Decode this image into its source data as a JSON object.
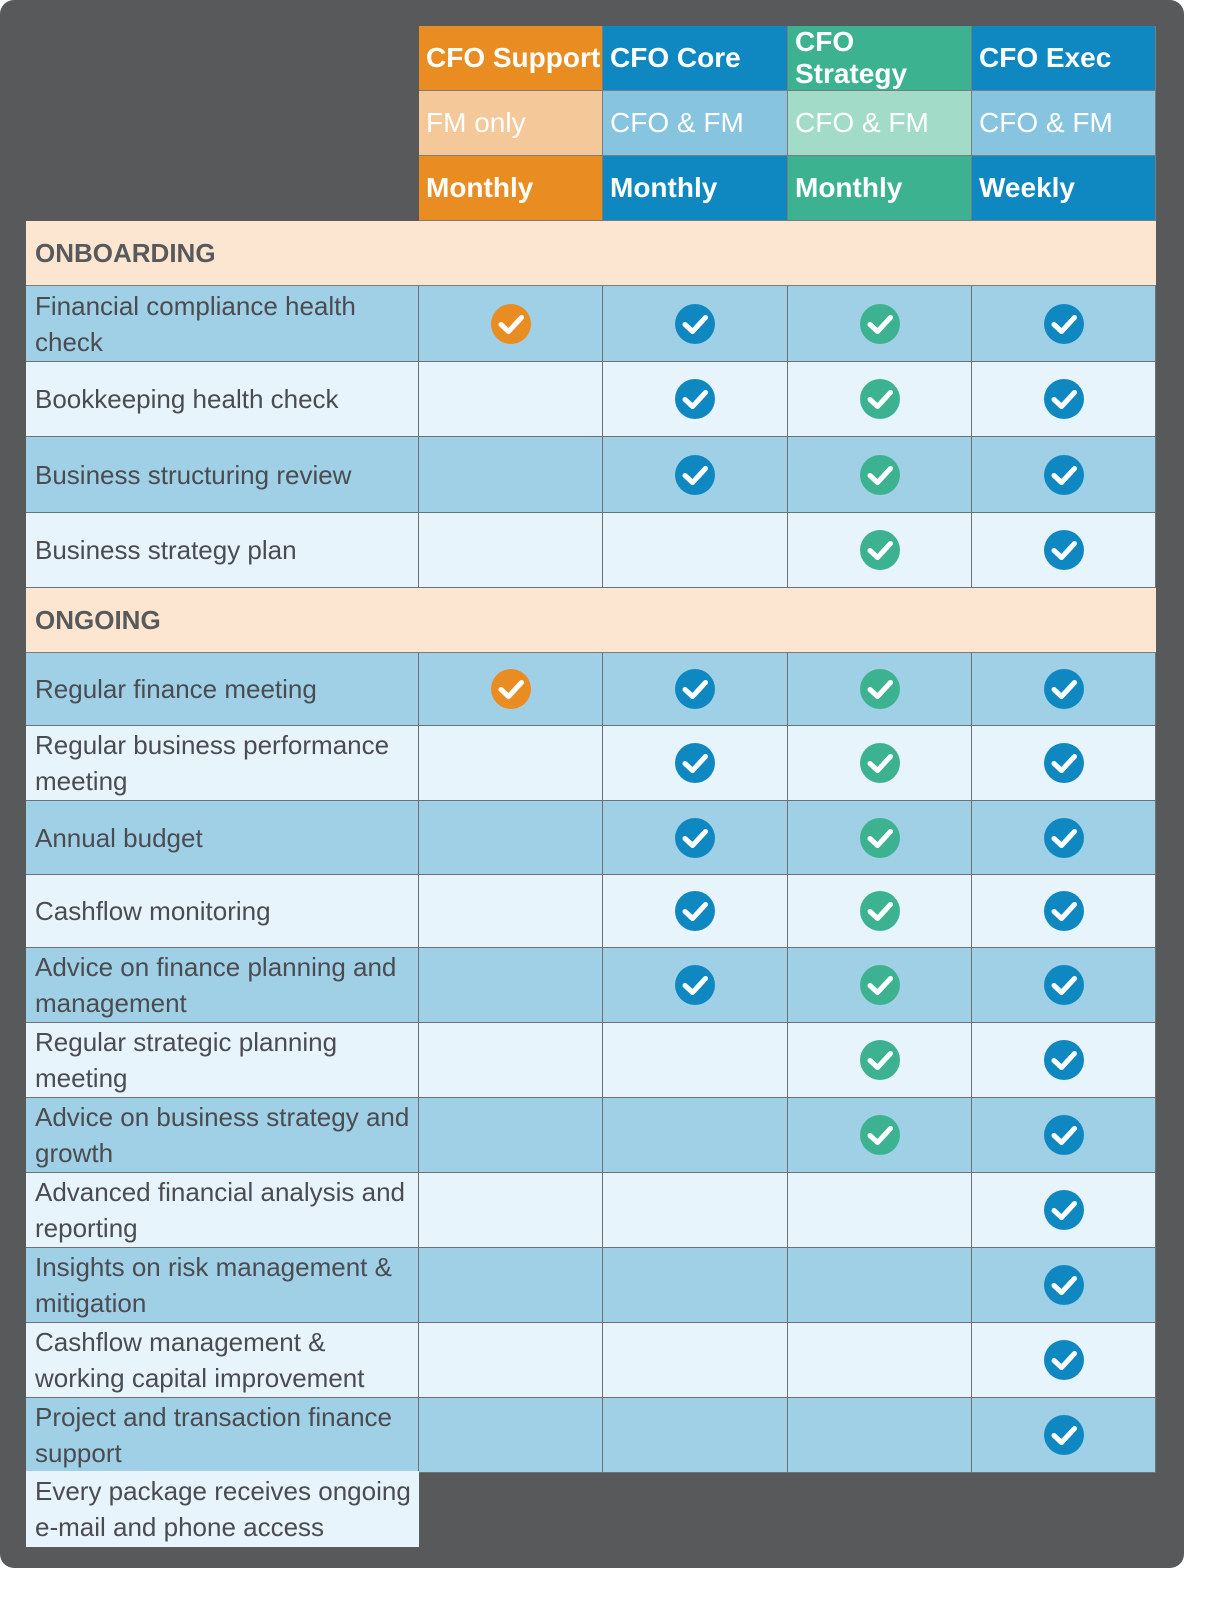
{
  "tiers": [
    {
      "name": "CFO Support",
      "team": "FM only",
      "frequency": "Monthly",
      "name_bg": "#e98c22",
      "team_bg": "#f4c899",
      "frequency_bg": "#e98c22",
      "check_color": "#e98c22"
    },
    {
      "name": "CFO Core",
      "team": "CFO & FM",
      "frequency": "Monthly",
      "name_bg": "#0f88c2",
      "team_bg": "#86c4df",
      "frequency_bg": "#0f88c2",
      "check_color": "#0f88c2"
    },
    {
      "name": "CFO Strategy",
      "team": "CFO & FM",
      "frequency": "Monthly",
      "name_bg": "#3db291",
      "team_bg": "#a3dbc9",
      "frequency_bg": "#3db291",
      "check_color": "#3db291"
    },
    {
      "name": "CFO Exec",
      "team": "CFO & FM",
      "frequency": "Weekly",
      "name_bg": "#0f88c2",
      "team_bg": "#86c4df",
      "frequency_bg": "#0f88c2",
      "check_color": "#0f88c2"
    }
  ],
  "sections": [
    {
      "title": "ONBOARDING",
      "rows": [
        {
          "label": "Financial compliance health check",
          "checks": [
            true,
            true,
            true,
            true
          ]
        },
        {
          "label": "Bookkeeping health check",
          "checks": [
            false,
            true,
            true,
            true
          ]
        },
        {
          "label": "Business structuring review",
          "checks": [
            false,
            true,
            true,
            true
          ]
        },
        {
          "label": "Business strategy plan",
          "checks": [
            false,
            false,
            true,
            true
          ]
        }
      ]
    },
    {
      "title": "ONGOING",
      "rows": [
        {
          "label": "Regular finance meeting",
          "checks": [
            true,
            true,
            true,
            true
          ]
        },
        {
          "label": "Regular business performance meeting",
          "checks": [
            false,
            true,
            true,
            true
          ]
        },
        {
          "label": "Annual budget",
          "checks": [
            false,
            true,
            true,
            true
          ]
        },
        {
          "label": "Cashflow monitoring",
          "checks": [
            false,
            true,
            true,
            true
          ]
        },
        {
          "label": "Advice on finance planning and management",
          "checks": [
            false,
            true,
            true,
            true
          ]
        },
        {
          "label": "Regular strategic planning meeting",
          "checks": [
            false,
            false,
            true,
            true
          ]
        },
        {
          "label": "Advice on business strategy and growth",
          "checks": [
            false,
            false,
            true,
            true
          ]
        },
        {
          "label": "Advanced financial analysis and reporting",
          "checks": [
            false,
            false,
            false,
            true
          ]
        },
        {
          "label": "Insights on risk management & mitigation",
          "checks": [
            false,
            false,
            false,
            true
          ]
        },
        {
          "label": "Cashflow management & working capital improvement",
          "checks": [
            false,
            false,
            false,
            true
          ]
        },
        {
          "label": "Project and transaction finance support",
          "checks": [
            false,
            false,
            false,
            true
          ]
        }
      ]
    }
  ],
  "footer_note": "Every package receives ongoing e-mail and phone access",
  "colors": {
    "panel": "#58595b",
    "section_bg": "#fce6d2",
    "row_dark": "#a0d0e6",
    "row_light": "#e8f4fb"
  }
}
